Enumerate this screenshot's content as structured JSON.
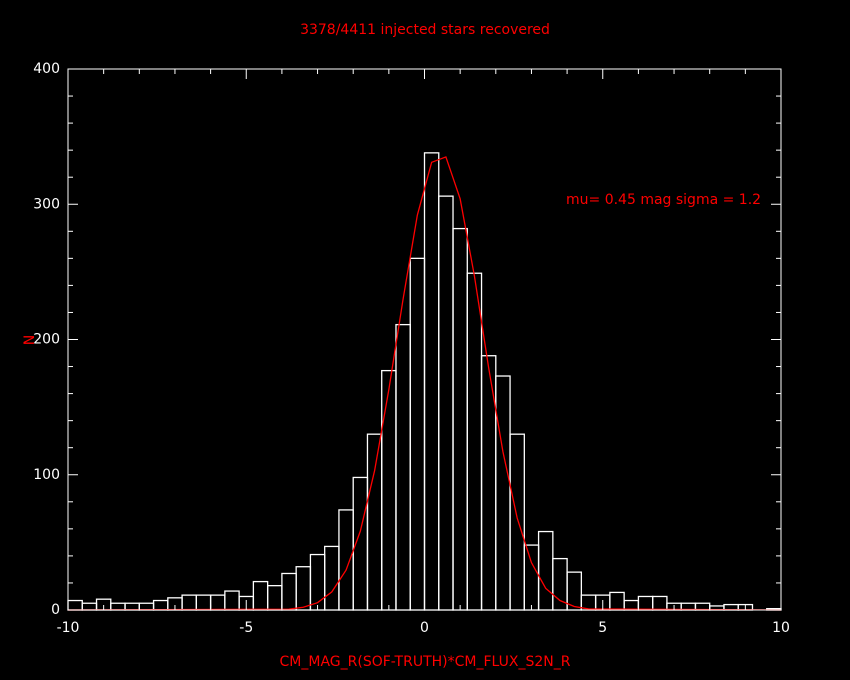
{
  "chart_data": {
    "type": "histogram",
    "title": "3378/4411 injected stars recovered",
    "x_label": "CM_MAG_R(SOF-TRUTH)*CM_FLUX_S2N_R",
    "y_label": "N",
    "annotation": "mu= 0.45 mag sigma = 1.2",
    "bins": [
      -10,
      -9.6,
      -9.2,
      -8.8,
      -8.4,
      -8,
      -7.6,
      -7.2,
      -6.8,
      -6.4,
      -6,
      -5.6,
      -5.2,
      -4.8,
      -4.4,
      -4,
      -3.6,
      -3.2,
      -2.8,
      -2.4,
      -2,
      -1.6,
      -1.2,
      -0.8,
      -0.4,
      0,
      0.4,
      0.8,
      1.2,
      1.6,
      2,
      2.4,
      2.8,
      3.2,
      3.6,
      4,
      4.4,
      4.8,
      5.2,
      5.6,
      6,
      6.4,
      6.8,
      7.2,
      7.6,
      8,
      8.4,
      8.8,
      9.2,
      9.6,
      10
    ],
    "values": [
      7,
      5,
      8,
      5,
      5,
      5,
      7,
      9,
      11,
      11,
      11,
      14,
      10,
      21,
      18,
      27,
      32,
      41,
      47,
      74,
      98,
      130,
      177,
      211,
      260,
      338,
      306,
      282,
      249,
      188,
      173,
      130,
      48,
      58,
      38,
      28,
      11,
      11,
      13,
      7,
      10,
      10,
      5,
      5,
      5,
      3,
      4,
      4,
      0,
      1
    ],
    "color": "#ffffff",
    "curve": {
      "type": "line",
      "color": "#ff0000",
      "x": [
        -10,
        -3.8,
        -3.4,
        -3.0,
        -2.6,
        -2.2,
        -1.8,
        -1.4,
        -1.0,
        -0.6,
        -0.2,
        0.2,
        0.6,
        1.0,
        1.4,
        1.8,
        2.2,
        2.6,
        3.0,
        3.4,
        3.8,
        4.2,
        4.6,
        10
      ],
      "values": [
        0,
        0.6,
        2,
        5.4,
        13.4,
        29.5,
        58.3,
        103,
        163,
        230,
        292,
        331,
        335,
        304,
        247,
        179,
        117,
        68,
        35,
        16,
        7,
        2.6,
        0.8,
        0
      ]
    },
    "xlim": [
      -10,
      10
    ],
    "ylim": [
      0,
      400
    ],
    "xticks": [
      -10,
      -5,
      0,
      5,
      10
    ],
    "yticks": [
      0,
      100,
      200,
      300,
      400
    ],
    "xminor_ticks": [
      -9,
      -8,
      -7,
      -6,
      -4,
      -3,
      -2,
      -1,
      1,
      2,
      3,
      4,
      6,
      7,
      8,
      9
    ],
    "yminor_ticks": [
      20,
      40,
      60,
      80,
      120,
      140,
      160,
      180,
      220,
      240,
      260,
      280,
      320,
      340,
      360,
      380
    ],
    "axis_color": "#ffffff",
    "text_color": "#ff0000"
  }
}
